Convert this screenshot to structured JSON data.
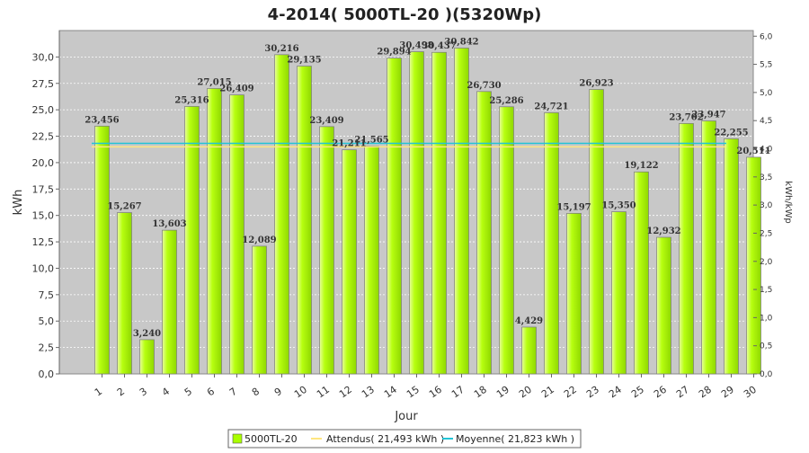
{
  "chart_data": {
    "type": "bar",
    "title": "4-2014( 5000TL-20 )(5320Wp)",
    "xlabel": "Jour",
    "ylabel": "kWh",
    "ylabel_right": "kWh/kWp",
    "ylim": [
      0,
      32.5
    ],
    "ylim_right": [
      0,
      6.1
    ],
    "yticks": [
      "0,0",
      "2,5",
      "5,0",
      "7,5",
      "10,0",
      "12,5",
      "15,0",
      "17,5",
      "20,0",
      "22,5",
      "25,0",
      "27,5",
      "30,0"
    ],
    "yticks_right": [
      "0,0",
      "0,5",
      "1,0",
      "1,5",
      "2,0",
      "2,5",
      "3,0",
      "3,5",
      "4,0",
      "4,5",
      "5,0",
      "5,5",
      "6,0"
    ],
    "categories": [
      "1",
      "2",
      "3",
      "4",
      "5",
      "6",
      "7",
      "8",
      "9",
      "10",
      "11",
      "12",
      "13",
      "14",
      "15",
      "16",
      "17",
      "18",
      "19",
      "20",
      "21",
      "22",
      "23",
      "24",
      "25",
      "26",
      "27",
      "28",
      "29",
      "30"
    ],
    "values": [
      23.456,
      15.267,
      3.24,
      13.603,
      25.316,
      27.015,
      26.409,
      12.089,
      30.216,
      29.135,
      23.409,
      21.211,
      21.565,
      29.894,
      30.498,
      30.437,
      30.842,
      26.73,
      25.286,
      4.429,
      24.721,
      15.197,
      26.923,
      15.35,
      19.122,
      12.932,
      23.702,
      23.947,
      22.255,
      20.511
    ],
    "data_labels": [
      "23,456",
      "15,267",
      "3,240",
      "13,603",
      "25,316",
      "27,015",
      "26,409",
      "12,089",
      "30,216",
      "29,135",
      "23,409",
      "21,211",
      "21,565",
      "29,894",
      "30,498",
      "30,437",
      "30,842",
      "26,730",
      "25,286",
      "4,429",
      "24,721",
      "15,197",
      "26,923",
      "15,350",
      "19,122",
      "12,932",
      "23,702",
      "23,947",
      "22,255",
      "20,511"
    ],
    "reference_lines": [
      {
        "name": "Attendus( 21,493 kWh )",
        "value": 21.493,
        "color": "#ffe680"
      },
      {
        "name": "Moyenne( 21,823 kWh )",
        "value": 21.823,
        "color": "#22c4d6"
      }
    ],
    "series": [
      {
        "name": "5000TL-20",
        "color": "#aaff00"
      }
    ],
    "grid": true,
    "legend_position": "bottom"
  }
}
